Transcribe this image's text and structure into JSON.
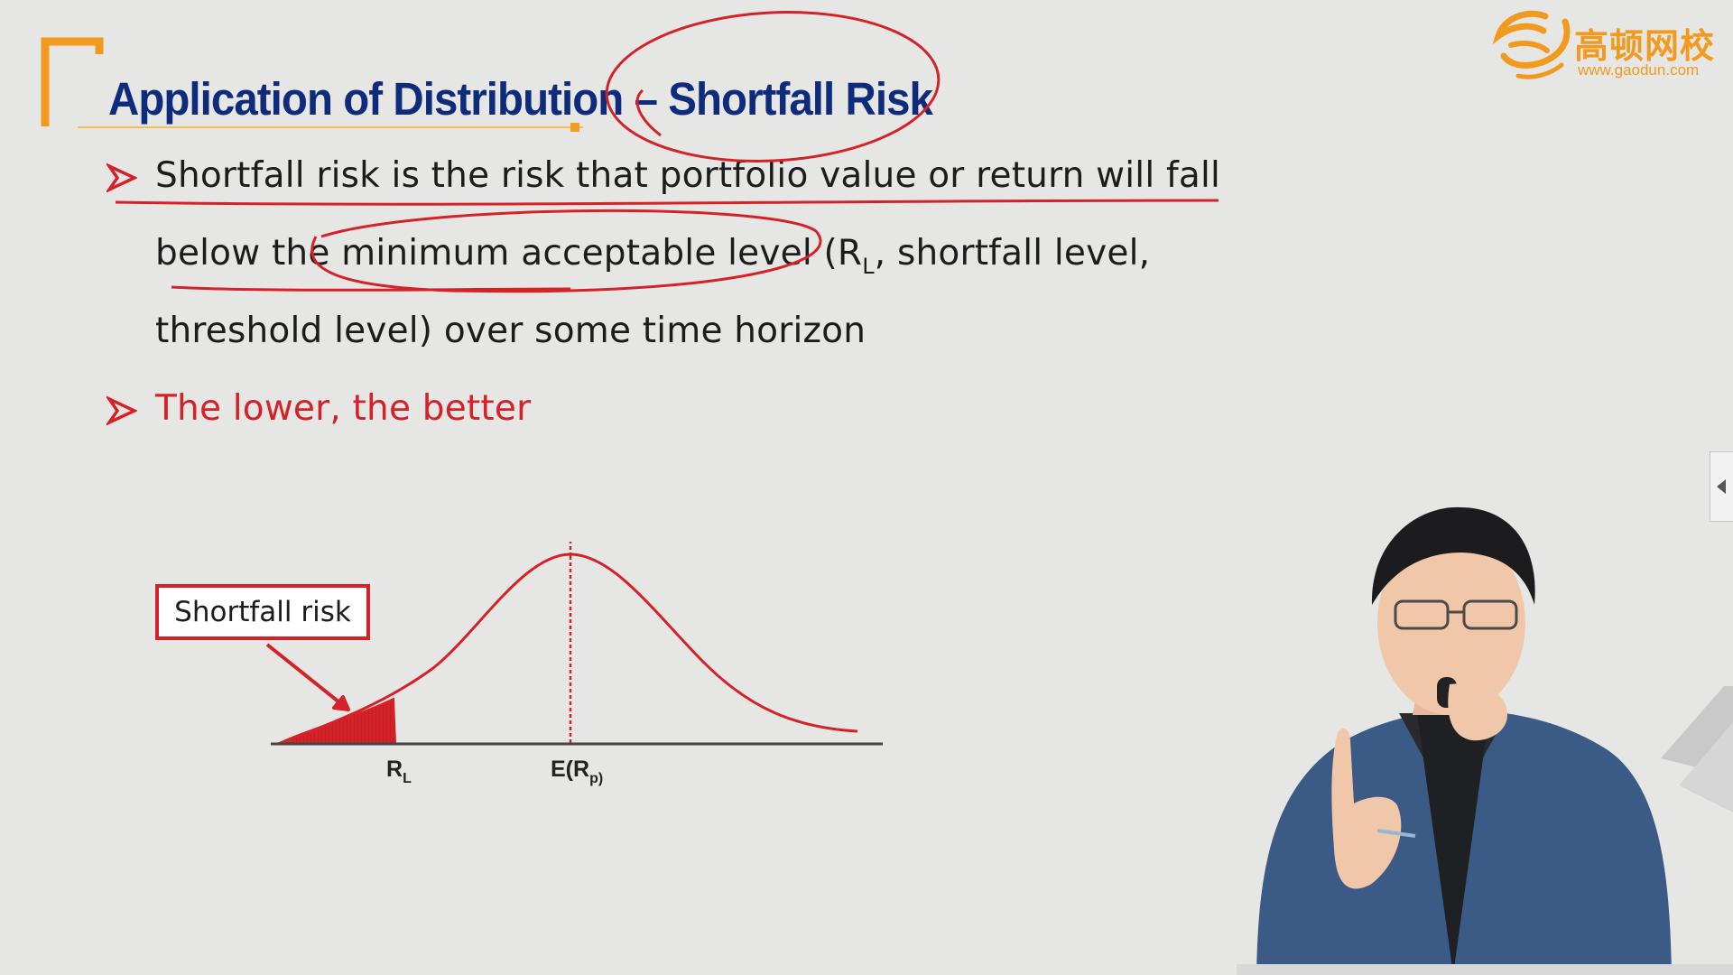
{
  "slide": {
    "title": "Application of Distribution – Shortfall Risk",
    "bullets": [
      {
        "lines": [
          "Shortfall risk is the risk that portfolio value or return will fall",
          "below the minimum acceptable level (R",
          "L",
          ", shortfall level,",
          "threshold level) over some time horizon"
        ]
      },
      {
        "text": "The lower, the better"
      }
    ],
    "diagram": {
      "callout_label": "Shortfall risk",
      "x_labels": [
        {
          "main": "R",
          "sub": "L"
        },
        {
          "main": "E(R",
          "sub": "p)"
        }
      ]
    }
  },
  "logo": {
    "name": "高顿网校",
    "url": "www.gaodun.com"
  },
  "colors": {
    "title": "#0f2b7c",
    "accent_red": "#d42228",
    "bracket_orange": "#f29a1e",
    "background": "#e6e6e4"
  },
  "icons": {
    "bullet": "arrowhead-bullet-icon",
    "side_toggle": "chevron-left-icon"
  }
}
